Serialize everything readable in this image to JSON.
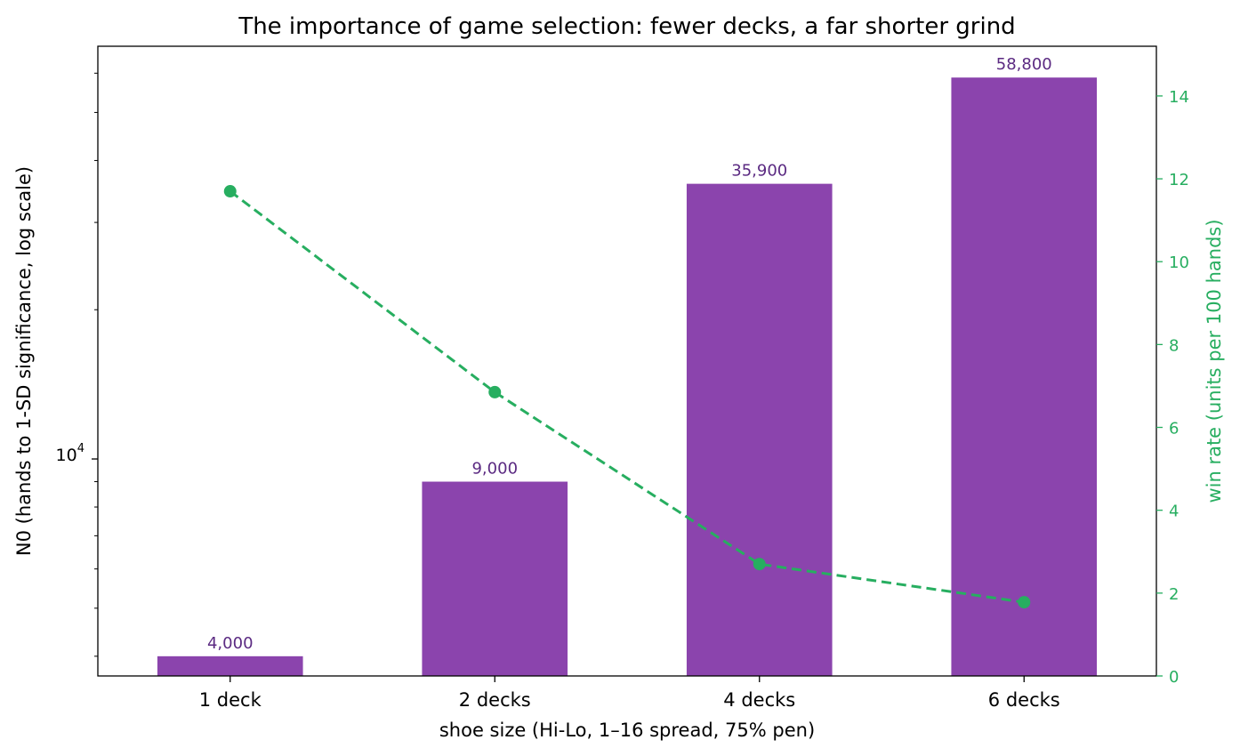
{
  "chart_data": {
    "type": "bar",
    "title": "The importance of game selection: fewer decks, a far shorter grind",
    "xlabel": "shoe size (Hi-Lo, 1–16 spread, 75% pen)",
    "ylabel": "N0 (hands to 1-SD significance, log scale)",
    "y2label": "win rate (units per 100 hands)",
    "categories": [
      "1 deck",
      "2 decks",
      "4 decks",
      "6 decks"
    ],
    "bars": {
      "values": [
        4000,
        9000,
        35900,
        58800
      ],
      "labels": [
        "4,000",
        "9,000",
        "35,900",
        "58,800"
      ],
      "color": "#8b44ad",
      "label_color": "#5b2a82",
      "yscale": "log",
      "ylim": [
        3650,
        68000
      ],
      "y_tick_values": [
        10000
      ],
      "y_tick_base": "10",
      "y_tick_exponents": [
        "4"
      ]
    },
    "line": {
      "values": [
        11.7,
        6.85,
        2.7,
        1.78
      ],
      "color": "#27ae60",
      "style": "dashed",
      "marker": "circle",
      "ylim": [
        0,
        15.2
      ],
      "ticks": [
        0,
        2,
        4,
        6,
        8,
        10,
        12,
        14
      ],
      "tick_labels": [
        "0",
        "2",
        "4",
        "6",
        "8",
        "10",
        "12",
        "14"
      ]
    },
    "grid": false,
    "legend": "none"
  }
}
